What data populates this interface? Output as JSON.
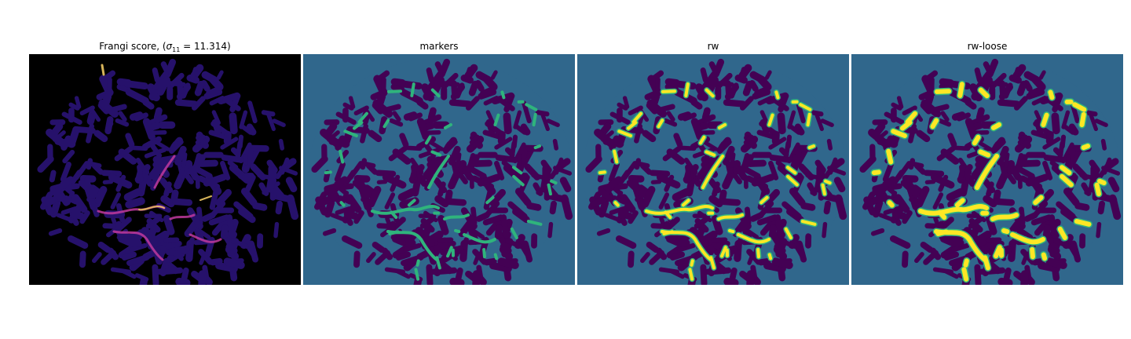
{
  "panels": [
    {
      "id": "frangi",
      "title_prefix": "Frangi score, (",
      "title_sigma": "σ",
      "title_sub": "11",
      "title_suffix": " = 11.314)"
    },
    {
      "id": "markers",
      "title": "markers"
    },
    {
      "id": "rw",
      "title": "rw"
    },
    {
      "id": "rw-loose",
      "title": "rw-loose"
    }
  ],
  "colors": {
    "frangi_background": "#000000",
    "frangi_blob": "#26116b",
    "frangi_hot": "#c03a9e",
    "frangi_bright": "#fdd36a",
    "seg_background": "#30678c",
    "seg_blob": "#440154",
    "seg_marker": "#2fb47c",
    "seg_label": "#fde725"
  }
}
